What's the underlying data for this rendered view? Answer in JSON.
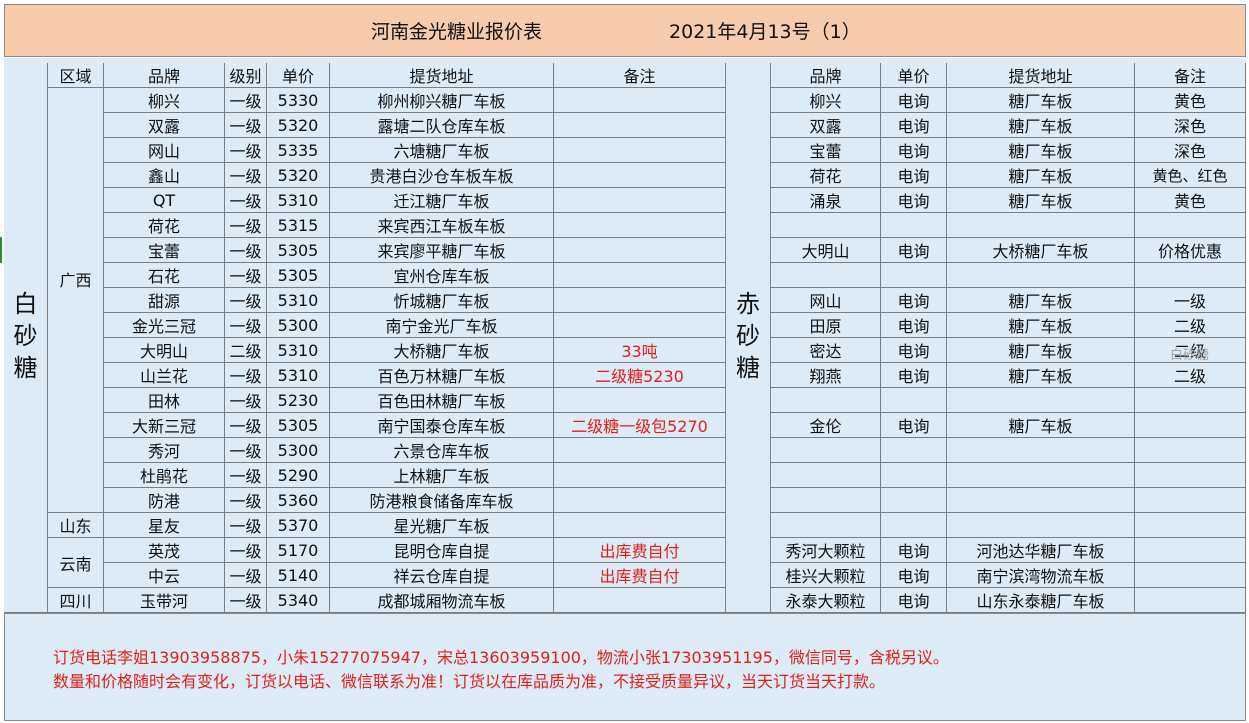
{
  "title": {
    "company": "河南金光糖业报价表",
    "date": "2021年4月13号（1）"
  },
  "white_sugar": {
    "label": "白砂糖",
    "headers": [
      "区域",
      "品牌",
      "级别",
      "单价",
      "提货地址",
      "备注"
    ],
    "regions": [
      {
        "name": "广西",
        "rows": [
          {
            "brand": "柳兴",
            "grade": "一级",
            "price": "5330",
            "address": "柳州柳兴糖厂车板",
            "note": ""
          },
          {
            "brand": "双露",
            "grade": "一级",
            "price": "5320",
            "address": "露塘二队仓库车板",
            "note": ""
          },
          {
            "brand": "网山",
            "grade": "一级",
            "price": "5335",
            "address": "六塘糖厂车板",
            "note": ""
          },
          {
            "brand": "鑫山",
            "grade": "一级",
            "price": "5320",
            "address": "贵港白沙仓车板车板",
            "note": ""
          },
          {
            "brand": "QT",
            "grade": "一级",
            "price": "5310",
            "address": "迁江糖厂车板",
            "note": ""
          },
          {
            "brand": "荷花",
            "grade": "一级",
            "price": "5315",
            "address": "来宾西江车板车板",
            "note": ""
          },
          {
            "brand": "宝蕾",
            "grade": "一级",
            "price": "5305",
            "address": "来宾廖平糖厂车板",
            "note": ""
          },
          {
            "brand": "石花",
            "grade": "一级",
            "price": "5305",
            "address": "宜州仓库车板",
            "note": ""
          },
          {
            "brand": "甜源",
            "grade": "一级",
            "price": "5310",
            "address": "忻城糖厂车板",
            "note": ""
          },
          {
            "brand": "金光三冠",
            "grade": "一级",
            "price": "5300",
            "address": "南宁金光厂车板",
            "note": ""
          },
          {
            "brand": "大明山",
            "grade": "二级",
            "price": "5310",
            "address": "大桥糖厂车板",
            "note": "33吨"
          },
          {
            "brand": "山兰花",
            "grade": "一级",
            "price": "5310",
            "address": "百色万林糖厂车板",
            "note": "二级糖5230"
          },
          {
            "brand": "田林",
            "grade": "一级",
            "price": "5230",
            "address": "百色田林糖厂车板",
            "note": ""
          },
          {
            "brand": "大新三冠",
            "grade": "一级",
            "price": "5305",
            "address": "南宁国泰仓库车板",
            "note": "二级糖一级包5270"
          },
          {
            "brand": "秀河",
            "grade": "一级",
            "price": "5300",
            "address": "六景仓库车板",
            "note": ""
          },
          {
            "brand": "杜鹃花",
            "grade": "一级",
            "price": "5290",
            "address": "上林糖厂车板",
            "note": ""
          },
          {
            "brand": "防港",
            "grade": "一级",
            "price": "5360",
            "address": "防港粮食储备库车板",
            "note": ""
          }
        ]
      },
      {
        "name": "山东",
        "rows": [
          {
            "brand": "星友",
            "grade": "一级",
            "price": "5370",
            "address": "星光糖厂车板",
            "note": ""
          }
        ]
      },
      {
        "name": "云南",
        "rows": [
          {
            "brand": "英茂",
            "grade": "一级",
            "price": "5170",
            "address": "昆明仓库自提",
            "note": "出库费自付"
          },
          {
            "brand": "中云",
            "grade": "一级",
            "price": "5140",
            "address": "祥云仓库自提",
            "note": "出库费自付"
          }
        ]
      },
      {
        "name": "四川",
        "rows": [
          {
            "brand": "玉带河",
            "grade": "一级",
            "price": "5340",
            "address": "成都城厢物流车板",
            "note": ""
          }
        ]
      }
    ]
  },
  "brown_sugar": {
    "label": "赤砂糖",
    "headers": [
      "品牌",
      "单价",
      "提货地址",
      "备注"
    ],
    "rows": [
      {
        "brand": "柳兴",
        "price": "电询",
        "address": "糖厂车板",
        "note": "黄色"
      },
      {
        "brand": "双露",
        "price": "电询",
        "address": "糖厂车板",
        "note": "深色"
      },
      {
        "brand": "宝蕾",
        "price": "电询",
        "address": "糖厂车板",
        "note": "深色"
      },
      {
        "brand": "荷花",
        "price": "电询",
        "address": "糖厂车板",
        "note": "黄色、红色"
      },
      {
        "brand": "涌泉",
        "price": "电询",
        "address": "糖厂车板",
        "note": "黄色"
      },
      {
        "brand": "",
        "price": "",
        "address": "",
        "note": ""
      },
      {
        "brand": "大明山",
        "price": "电询",
        "address": "大桥糖厂车板",
        "note": "价格优惠"
      },
      {
        "brand": "",
        "price": "",
        "address": "",
        "note": ""
      },
      {
        "brand": "网山",
        "price": "电询",
        "address": "糖厂车板",
        "note": "一级"
      },
      {
        "brand": "田原",
        "price": "电询",
        "address": "糖厂车板",
        "note": "二级"
      },
      {
        "brand": "密达",
        "price": "电询",
        "address": "糖厂车板",
        "note": "二级"
      },
      {
        "brand": "翔燕",
        "price": "电询",
        "address": "糖厂车板",
        "note": "二级"
      },
      {
        "brand": "",
        "price": "",
        "address": "",
        "note": ""
      },
      {
        "brand": "金伦",
        "price": "电询",
        "address": "糖厂车板",
        "note": ""
      },
      {
        "brand": "",
        "price": "",
        "address": "",
        "note": ""
      },
      {
        "brand": "",
        "price": "",
        "address": "",
        "note": ""
      },
      {
        "brand": "",
        "price": "",
        "address": "",
        "note": ""
      },
      {
        "brand": "",
        "price": "",
        "address": "",
        "note": ""
      },
      {
        "brand": "秀河大颗粒",
        "price": "电询",
        "address": "河池达华糖厂车板",
        "note": ""
      },
      {
        "brand": "桂兴大颗粒",
        "price": "电询",
        "address": "南宁滨湾物流车板",
        "note": ""
      },
      {
        "brand": "永泰大颗粒",
        "price": "电询",
        "address": "山东永泰糖厂车板",
        "note": ""
      }
    ]
  },
  "floating_label": "白砂糖",
  "notes": [
    "订货电话李姐13903958875，小朱15277075947，宋总13603959100，物流小张17303951195，微信同号，含税另议。",
    "数量和价格随时会有变化，订货以电话、微信联系为准！订货以在库品质为准，不接受质量异议，当天订货当天打款。"
  ]
}
